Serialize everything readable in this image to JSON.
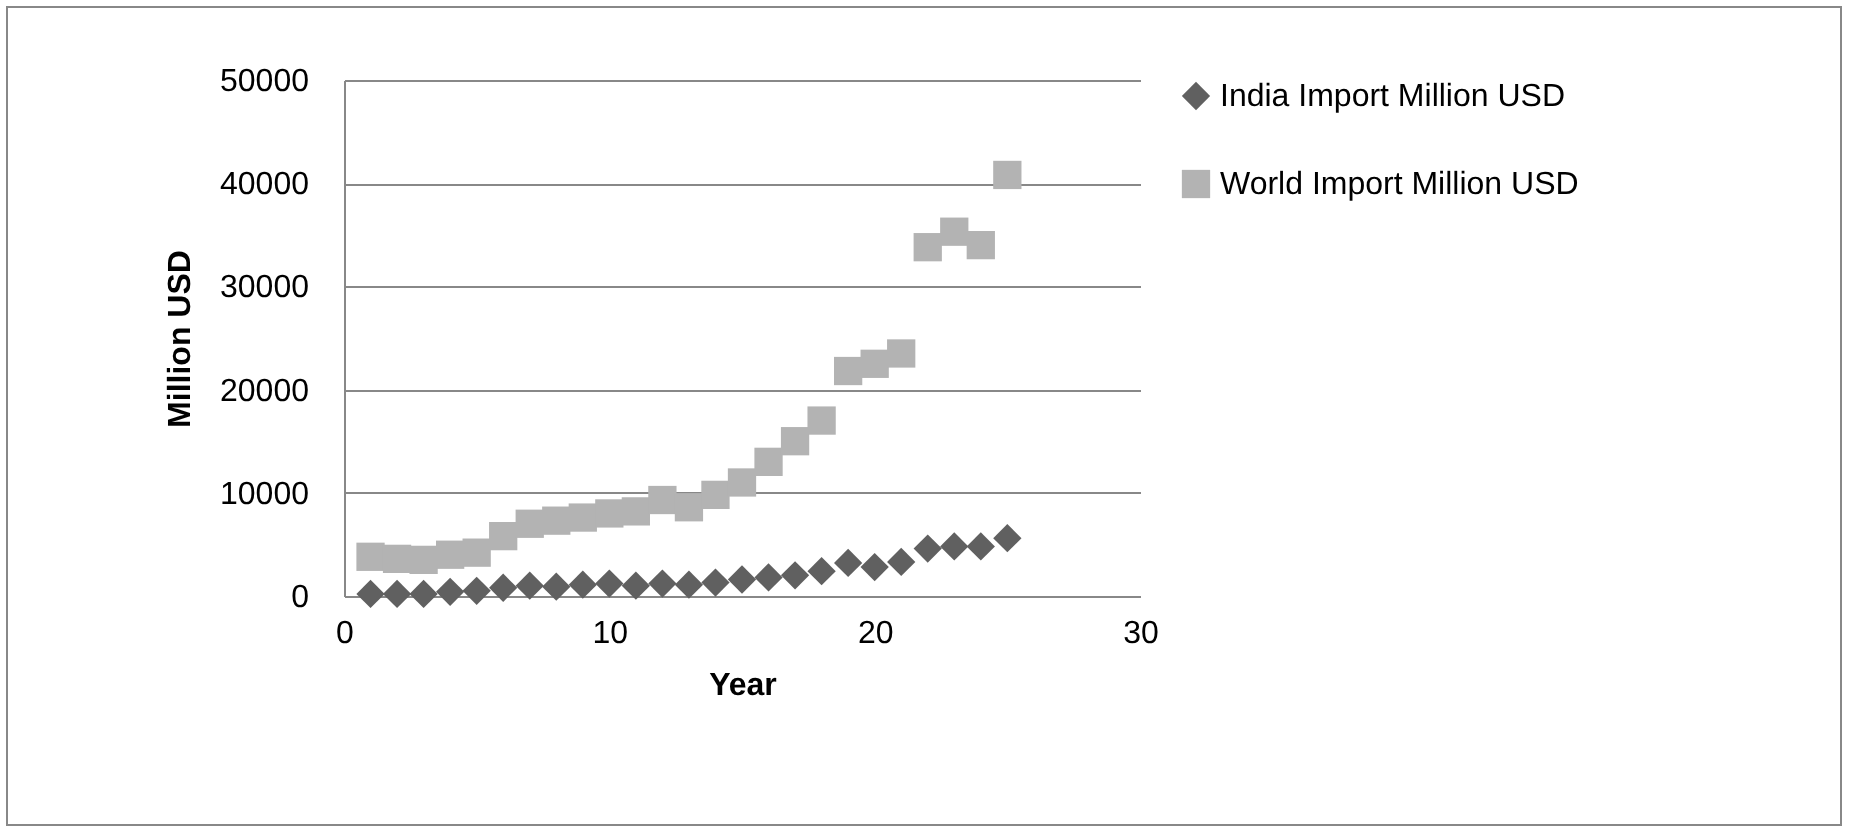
{
  "chart_data": {
    "type": "scatter",
    "xlabel": "Year",
    "ylabel": "Million USD",
    "x": [
      1,
      2,
      3,
      4,
      5,
      6,
      7,
      8,
      9,
      10,
      11,
      12,
      13,
      14,
      15,
      16,
      17,
      18,
      19,
      20,
      21,
      22,
      23,
      24,
      25
    ],
    "series": [
      {
        "name": "India Import Million USD",
        "color": "#606060",
        "marker": "diamond",
        "values": [
          200,
          200,
          200,
          400,
          500,
          800,
          1000,
          900,
          1100,
          1200,
          1000,
          1200,
          1100,
          1300,
          1600,
          1800,
          2000,
          2400,
          3200,
          2800,
          3300,
          4600,
          4800,
          4800,
          5600
        ]
      },
      {
        "name": "World Import Million USD",
        "color": "#b3b3b3",
        "marker": "square",
        "values": [
          3800,
          3600,
          3500,
          4000,
          4200,
          5800,
          7000,
          7300,
          7600,
          8000,
          8200,
          9300,
          8600,
          9800,
          11000,
          13000,
          15000,
          17000,
          21800,
          22500,
          23500,
          33800,
          35300,
          34000,
          40800
        ]
      }
    ],
    "xlim": [
      0,
      30
    ],
    "xticks": [
      0,
      10,
      20,
      30
    ],
    "ylim": [
      0,
      50000
    ],
    "yticks": [
      0,
      10000,
      20000,
      30000,
      40000,
      50000
    ],
    "grid": "y",
    "legend": "right"
  }
}
